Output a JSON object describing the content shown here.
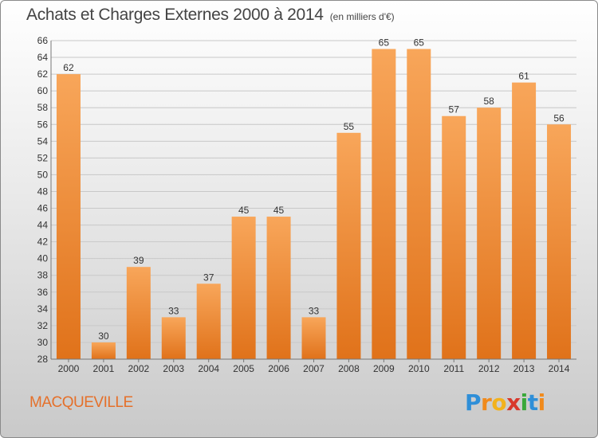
{
  "header": {
    "title": "Achats et Charges Externes 2000 à 2014",
    "unit": "(en milliers d'€)"
  },
  "footer": {
    "commune": "MACQUEVILLE",
    "brand": {
      "letters": [
        "P",
        "r",
        "o",
        "x",
        "i",
        "t",
        "i"
      ],
      "colors": [
        "#2f8fd8",
        "#f08a1c",
        "#f2b21d",
        "#d8382b",
        "#3aa83a",
        "#2f8fd8",
        "#f08a1c"
      ]
    }
  },
  "colors": {
    "bar_light": "#f8a65a",
    "bar_dark": "#e0721a",
    "grid": "#c8c8c8",
    "axis_text": "#333333",
    "accent": "#e5702a"
  },
  "chart_data": {
    "type": "bar",
    "title": "Achats et Charges Externes 2000 à 2014",
    "subtitle": "(en milliers d'€)",
    "categories": [
      "2000",
      "2001",
      "2002",
      "2003",
      "2004",
      "2005",
      "2006",
      "2007",
      "2008",
      "2009",
      "2010",
      "2011",
      "2012",
      "2013",
      "2014"
    ],
    "values": [
      62,
      30,
      39,
      33,
      37,
      45,
      45,
      33,
      55,
      65,
      65,
      57,
      58,
      61,
      56
    ],
    "ylim": [
      28,
      66
    ],
    "yticks": [
      28,
      30,
      32,
      34,
      36,
      38,
      40,
      42,
      44,
      46,
      48,
      50,
      52,
      54,
      56,
      58,
      60,
      62,
      64,
      66
    ],
    "grid": true,
    "data_labels": true
  }
}
